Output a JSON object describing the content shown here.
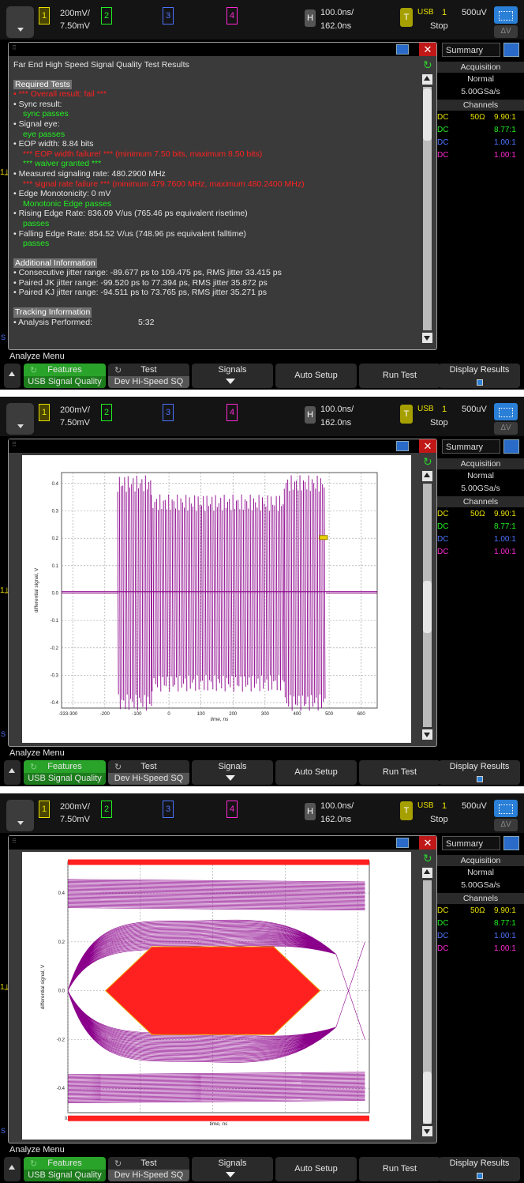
{
  "header": {
    "ch1_scale": "200mV/",
    "ch1_offset": "7.50mV",
    "ch1_num": "1",
    "ch2_num": "2",
    "ch3_num": "3",
    "ch4_num": "4",
    "h_label": "H",
    "time_scale": "100.0ns/",
    "time_delay": "162.0ns",
    "t_label": "T",
    "trig_type": "USB",
    "trig_ch": "1",
    "trig_level": "500uV",
    "run_state": "Stop",
    "measure_icon": "ΔV"
  },
  "side_panel": {
    "tab": "Summary",
    "acquisition_title": "Acquisition",
    "acq_mode": "Normal",
    "sample_rate": "5.00GSa/s",
    "channels_title": "Channels",
    "channels": [
      {
        "coupling": "DC",
        "impedance": "50Ω",
        "probe": "9.90:1",
        "color": "#e8e000"
      },
      {
        "coupling": "DC",
        "impedance": "",
        "probe": "8.77:1",
        "color": "#22ee22"
      },
      {
        "coupling": "DC",
        "impedance": "",
        "probe": "1.00:1",
        "color": "#4d74ff"
      },
      {
        "coupling": "DC",
        "impedance": "",
        "probe": "1.00:1",
        "color": "#ff2ad4"
      }
    ]
  },
  "softkeys": {
    "menu_title": "Analyze Menu",
    "features_label": "Features",
    "features_value": "USB Signal Quality",
    "test_label": "Test",
    "test_value": "Dev Hi-Speed SQ",
    "signals_label": "Signals",
    "auto_setup": "Auto Setup",
    "run_test": "Run Test",
    "display_results": "Display Results"
  },
  "results": {
    "title": "Far End High Speed Signal Quality Test Results",
    "required_tests": "Required Tests",
    "overall": "• *** Overall result: fail ***",
    "sync_result": "• Sync result:",
    "sync_passes": "sync passes",
    "signal_eye": "• Signal eye:",
    "eye_passes": "eye passes",
    "eop_width": "• EOP width: 8.84  bits",
    "eop_failure": "*** EOP width failure! ***  (minimum 7.50  bits, maximum 8.50  bits)",
    "waiver": "*** waiver granted ***",
    "signaling_rate": "• Measured signaling rate: 480.2900 MHz",
    "rate_failure": "*** signal rate failure ***  (minimum 479.7600 MHz, maximum 480.2400 MHz)",
    "edge_monotonicity": "• Edge Monotonicity:   0 mV",
    "monotonic_passes": "Monotonic Edge passes",
    "rising_edge": "• Rising Edge Rate: 836.09  V/us (765.46 ps equivalent risetime)",
    "rising_passes": "passes",
    "falling_edge": "• Falling Edge Rate: 854.52  V/us (748.96 ps equivalent falltime)",
    "falling_passes": "passes",
    "additional_info": "Additional Information",
    "consecutive_jitter": "• Consecutive jitter range: -89.677 ps to 109.475 ps, RMS jitter 33.415 ps",
    "jk_jitter": "• Paired JK jitter range: -99.520 ps to 77.394 ps, RMS jitter 35.872 ps",
    "kj_jitter": "• Paired KJ jitter range: -94.511 ps to 73.765 ps, RMS jitter 35.271 ps",
    "tracking_info": "Tracking Information",
    "analysis_performed_label": "• Analysis Performed:",
    "analysis_performed_value": "5:32"
  },
  "colors": {
    "waveform": "#8b008b",
    "eye_mask": "#ff2020",
    "mask_stroke": "#e8a000",
    "pass_green": "#22ee22",
    "fail_red": "#ff2020"
  },
  "chart_data": [
    {
      "type": "line",
      "title": "",
      "xlabel": "time, ns",
      "ylabel": "differential signal, V",
      "xlim": [
        -335,
        650
      ],
      "ylim": [
        -0.42,
        0.44
      ],
      "x_ticks": [
        "-333-300",
        "-200",
        "-100",
        "0",
        "100",
        "200",
        "300",
        "400",
        "500",
        "600"
      ],
      "y_ticks": [
        "0.4",
        "0.3",
        "0.2",
        "0.1",
        "0.0",
        "-0.1",
        "-0.2",
        "-0.3",
        "-0.4"
      ],
      "grid": true,
      "segments": [
        {
          "name": "idle",
          "x": [
            -335,
            -160
          ],
          "amplitude": 0.0
        },
        {
          "name": "sync-burst",
          "x": [
            -160,
            -55
          ],
          "amplitude": 0.4
        },
        {
          "name": "packet",
          "x": [
            -55,
            360
          ],
          "amplitude": 0.33
        },
        {
          "name": "eop",
          "x": [
            360,
            490
          ],
          "amplitude": 0.4
        },
        {
          "name": "idle-end",
          "x": [
            490,
            650
          ],
          "amplitude": 0.0
        }
      ]
    },
    {
      "type": "line",
      "title": "",
      "xlabel": "time, ns",
      "ylabel": "differential signal, V",
      "xlim": [
        0.0,
        2.08
      ],
      "ylim": [
        -0.5,
        0.53
      ],
      "x_ticks": [
        "0.0",
        "0.5",
        "1.0",
        "1.5",
        "2.0"
      ],
      "y_ticks": [
        "0.4",
        "0.2",
        "0.0",
        "-0.2",
        "-0.4"
      ],
      "grid": true,
      "mask_polygon": {
        "x": [
          0.26,
          0.58,
          1.42,
          1.74,
          1.42,
          0.58
        ],
        "y": [
          0.0,
          0.18,
          0.18,
          0.0,
          -0.18,
          -0.18
        ]
      },
      "mask_limits": [
        0.525,
        -0.525
      ],
      "eye_levels": [
        0.4,
        -0.4,
        0.23,
        -0.23
      ]
    }
  ]
}
